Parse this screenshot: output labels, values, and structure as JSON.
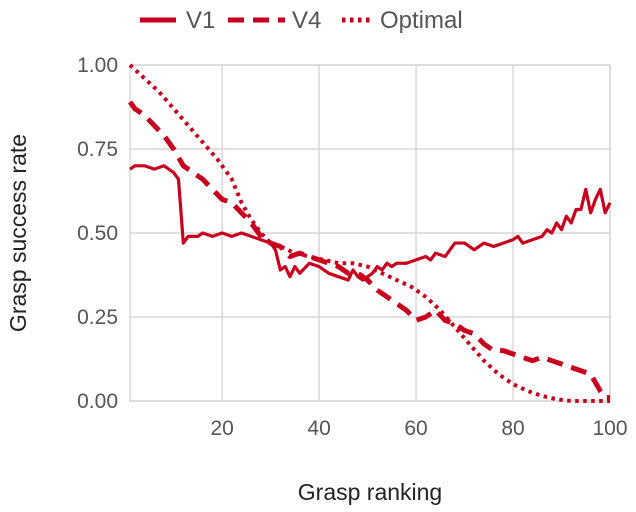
{
  "colors": {
    "series": "#c8001e",
    "grid": "#cfcfcf",
    "tick_text": "#555555",
    "label_text": "#222222"
  },
  "chart_data": {
    "type": "line",
    "title": "",
    "xlabel": "Grasp ranking",
    "ylabel": "Grasp success rate",
    "xlim": [
      1,
      100
    ],
    "ylim": [
      0,
      1
    ],
    "xticks": [
      20,
      40,
      60,
      80,
      100
    ],
    "xtick_labels": [
      "20",
      "40",
      "60",
      "80",
      "100"
    ],
    "yticks": [
      0,
      0.25,
      0.5,
      0.75,
      1.0
    ],
    "ytick_labels": [
      "0.00",
      "0.25",
      "0.50",
      "0.75",
      "1.00"
    ],
    "grid": true,
    "legend_position": "top",
    "series": [
      {
        "name": "V1",
        "style": "solid",
        "points": [
          [
            1,
            0.69
          ],
          [
            2,
            0.7
          ],
          [
            4,
            0.7
          ],
          [
            6,
            0.69
          ],
          [
            8,
            0.7
          ],
          [
            9,
            0.69
          ],
          [
            10,
            0.68
          ],
          [
            11,
            0.66
          ],
          [
            12,
            0.47
          ],
          [
            13,
            0.49
          ],
          [
            15,
            0.49
          ],
          [
            16,
            0.5
          ],
          [
            18,
            0.49
          ],
          [
            20,
            0.5
          ],
          [
            22,
            0.49
          ],
          [
            24,
            0.5
          ],
          [
            26,
            0.49
          ],
          [
            28,
            0.48
          ],
          [
            30,
            0.47
          ],
          [
            31,
            0.45
          ],
          [
            32,
            0.39
          ],
          [
            33,
            0.4
          ],
          [
            34,
            0.37
          ],
          [
            35,
            0.4
          ],
          [
            36,
            0.38
          ],
          [
            38,
            0.41
          ],
          [
            40,
            0.4
          ],
          [
            42,
            0.38
          ],
          [
            44,
            0.37
          ],
          [
            46,
            0.36
          ],
          [
            47,
            0.39
          ],
          [
            48,
            0.37
          ],
          [
            49,
            0.36
          ],
          [
            50,
            0.37
          ],
          [
            51,
            0.38
          ],
          [
            52,
            0.4
          ],
          [
            53,
            0.39
          ],
          [
            54,
            0.41
          ],
          [
            55,
            0.4
          ],
          [
            56,
            0.41
          ],
          [
            58,
            0.41
          ],
          [
            60,
            0.42
          ],
          [
            62,
            0.43
          ],
          [
            63,
            0.42
          ],
          [
            64,
            0.44
          ],
          [
            66,
            0.43
          ],
          [
            68,
            0.47
          ],
          [
            70,
            0.47
          ],
          [
            71,
            0.46
          ],
          [
            72,
            0.45
          ],
          [
            74,
            0.47
          ],
          [
            76,
            0.46
          ],
          [
            78,
            0.47
          ],
          [
            80,
            0.48
          ],
          [
            81,
            0.49
          ],
          [
            82,
            0.47
          ],
          [
            84,
            0.48
          ],
          [
            86,
            0.49
          ],
          [
            87,
            0.51
          ],
          [
            88,
            0.5
          ],
          [
            89,
            0.53
          ],
          [
            90,
            0.51
          ],
          [
            91,
            0.55
          ],
          [
            92,
            0.53
          ],
          [
            93,
            0.57
          ],
          [
            94,
            0.57
          ],
          [
            95,
            0.63
          ],
          [
            96,
            0.56
          ],
          [
            97,
            0.6
          ],
          [
            98,
            0.63
          ],
          [
            99,
            0.56
          ],
          [
            100,
            0.59
          ]
        ]
      },
      {
        "name": "V4",
        "style": "dashed",
        "points": [
          [
            1,
            0.89
          ],
          [
            2,
            0.87
          ],
          [
            4,
            0.85
          ],
          [
            6,
            0.82
          ],
          [
            8,
            0.79
          ],
          [
            10,
            0.75
          ],
          [
            12,
            0.7
          ],
          [
            14,
            0.68
          ],
          [
            16,
            0.66
          ],
          [
            18,
            0.63
          ],
          [
            20,
            0.6
          ],
          [
            22,
            0.59
          ],
          [
            24,
            0.56
          ],
          [
            26,
            0.53
          ],
          [
            28,
            0.49
          ],
          [
            30,
            0.47
          ],
          [
            32,
            0.46
          ],
          [
            34,
            0.43
          ],
          [
            36,
            0.44
          ],
          [
            38,
            0.43
          ],
          [
            40,
            0.42
          ],
          [
            42,
            0.41
          ],
          [
            44,
            0.4
          ],
          [
            46,
            0.38
          ],
          [
            48,
            0.38
          ],
          [
            50,
            0.36
          ],
          [
            52,
            0.33
          ],
          [
            54,
            0.31
          ],
          [
            56,
            0.29
          ],
          [
            58,
            0.27
          ],
          [
            60,
            0.24
          ],
          [
            62,
            0.25
          ],
          [
            64,
            0.27
          ],
          [
            66,
            0.24
          ],
          [
            68,
            0.23
          ],
          [
            70,
            0.21
          ],
          [
            72,
            0.2
          ],
          [
            74,
            0.17
          ],
          [
            76,
            0.15
          ],
          [
            78,
            0.15
          ],
          [
            80,
            0.14
          ],
          [
            82,
            0.13
          ],
          [
            84,
            0.12
          ],
          [
            86,
            0.13
          ],
          [
            88,
            0.12
          ],
          [
            90,
            0.11
          ],
          [
            92,
            0.1
          ],
          [
            94,
            0.09
          ],
          [
            96,
            0.08
          ],
          [
            98,
            0.03
          ],
          [
            99,
            0.01
          ],
          [
            100,
            0.01
          ]
        ]
      },
      {
        "name": "Optimal",
        "style": "dotted",
        "points": [
          [
            1,
            1.0
          ],
          [
            4,
            0.96
          ],
          [
            7,
            0.92
          ],
          [
            10,
            0.87
          ],
          [
            13,
            0.82
          ],
          [
            16,
            0.77
          ],
          [
            19,
            0.72
          ],
          [
            22,
            0.66
          ],
          [
            24,
            0.59
          ],
          [
            26,
            0.54
          ],
          [
            28,
            0.5
          ],
          [
            30,
            0.47
          ],
          [
            32,
            0.46
          ],
          [
            35,
            0.44
          ],
          [
            38,
            0.43
          ],
          [
            41,
            0.42
          ],
          [
            44,
            0.41
          ],
          [
            47,
            0.41
          ],
          [
            50,
            0.4
          ],
          [
            53,
            0.38
          ],
          [
            56,
            0.36
          ],
          [
            59,
            0.34
          ],
          [
            62,
            0.31
          ],
          [
            65,
            0.27
          ],
          [
            68,
            0.22
          ],
          [
            71,
            0.17
          ],
          [
            74,
            0.12
          ],
          [
            77,
            0.08
          ],
          [
            80,
            0.05
          ],
          [
            83,
            0.03
          ],
          [
            86,
            0.015
          ],
          [
            89,
            0.005
          ],
          [
            92,
            0.0
          ],
          [
            96,
            0.0
          ],
          [
            100,
            0.0
          ]
        ]
      }
    ]
  }
}
